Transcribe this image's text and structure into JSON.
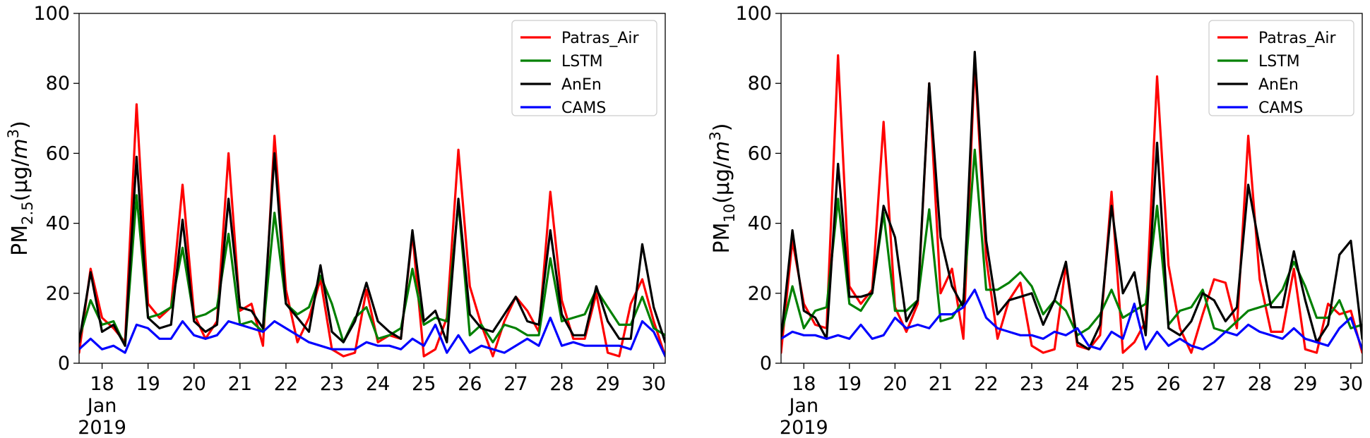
{
  "chart_data": [
    {
      "type": "line",
      "ylabel": {
        "main": "PM",
        "sub": "2.5",
        "unit": "(μg/m",
        "sup": "3",
        "close": ")"
      },
      "ylim": [
        0,
        100
      ],
      "yticks": [
        0,
        20,
        40,
        60,
        80,
        100
      ],
      "xlim": [
        17.5,
        30.25
      ],
      "xticks": [
        {
          "value": 18,
          "lines": [
            "18",
            "Jan",
            "2019"
          ]
        },
        {
          "value": 19,
          "lines": [
            "19"
          ]
        },
        {
          "value": 20,
          "lines": [
            "20"
          ]
        },
        {
          "value": 21,
          "lines": [
            "21"
          ]
        },
        {
          "value": 22,
          "lines": [
            "22"
          ]
        },
        {
          "value": 23,
          "lines": [
            "23"
          ]
        },
        {
          "value": 24,
          "lines": [
            "24"
          ]
        },
        {
          "value": 25,
          "lines": [
            "25"
          ]
        },
        {
          "value": 26,
          "lines": [
            "26"
          ]
        },
        {
          "value": 27,
          "lines": [
            "27"
          ]
        },
        {
          "value": 28,
          "lines": [
            "28"
          ]
        },
        {
          "value": 29,
          "lines": [
            "29"
          ]
        },
        {
          "value": 30,
          "lines": [
            "30"
          ]
        }
      ],
      "x": [
        17.5,
        17.75,
        18,
        18.25,
        18.5,
        18.75,
        19,
        19.25,
        19.5,
        19.75,
        20,
        20.25,
        20.5,
        20.75,
        21,
        21.25,
        21.5,
        21.75,
        22,
        22.25,
        22.5,
        22.75,
        23,
        23.25,
        23.5,
        23.75,
        24,
        24.25,
        24.5,
        24.75,
        25,
        25.25,
        25.5,
        25.75,
        26,
        26.25,
        26.5,
        26.75,
        27,
        27.25,
        27.5,
        27.75,
        28,
        28.25,
        28.5,
        28.75,
        29,
        29.25,
        29.5,
        29.75,
        30,
        30.25
      ],
      "legend_position": "top-right",
      "grid": false,
      "series": [
        {
          "name": "Patras_Air",
          "color": "#ff0000",
          "values": [
            3,
            27,
            13,
            10,
            6,
            74,
            17,
            13,
            16,
            51,
            14,
            7,
            12,
            60,
            15,
            17,
            5,
            65,
            21,
            6,
            13,
            24,
            4,
            2,
            3,
            21,
            6,
            8,
            7,
            37,
            2,
            4,
            13,
            61,
            22,
            11,
            2,
            12,
            19,
            15,
            9,
            49,
            18,
            7,
            7,
            20,
            3,
            2,
            17,
            24,
            12,
            2
          ]
        },
        {
          "name": "LSTM",
          "color": "#008000",
          "values": [
            7,
            18,
            11,
            12,
            5,
            48,
            13,
            14,
            16,
            33,
            13,
            14,
            16,
            37,
            11,
            12,
            9,
            43,
            17,
            14,
            16,
            25,
            17,
            6,
            13,
            16,
            7,
            8,
            10,
            27,
            11,
            13,
            12,
            46,
            8,
            11,
            6,
            11,
            10,
            8,
            8,
            30,
            12,
            13,
            14,
            21,
            16,
            11,
            11,
            19,
            10,
            8
          ]
        },
        {
          "name": "AnEn",
          "color": "#000000",
          "values": [
            6,
            26,
            9,
            11,
            5,
            59,
            13,
            10,
            11,
            41,
            12,
            9,
            11,
            47,
            16,
            15,
            10,
            60,
            17,
            13,
            9,
            28,
            9,
            6,
            12,
            23,
            12,
            9,
            7,
            38,
            12,
            15,
            6,
            47,
            14,
            10,
            9,
            14,
            19,
            12,
            11,
            38,
            14,
            8,
            8,
            22,
            12,
            7,
            7,
            34,
            16,
            6
          ]
        },
        {
          "name": "CAMS",
          "color": "#0000ff",
          "values": [
            4,
            7,
            4,
            5,
            3,
            11,
            10,
            7,
            7,
            12,
            8,
            7,
            8,
            12,
            11,
            10,
            9,
            12,
            10,
            8,
            6,
            5,
            4,
            4,
            4,
            6,
            5,
            5,
            4,
            7,
            5,
            11,
            3,
            8,
            3,
            5,
            4,
            3,
            5,
            7,
            5,
            13,
            5,
            6,
            5,
            5,
            5,
            5,
            4,
            12,
            9,
            2
          ]
        }
      ]
    },
    {
      "type": "line",
      "ylabel": {
        "main": "PM",
        "sub": "10",
        "unit": "(μg/m",
        "sup": "3",
        "close": ")"
      },
      "ylim": [
        0,
        100
      ],
      "yticks": [
        0,
        20,
        40,
        60,
        80,
        100
      ],
      "xlim": [
        17.5,
        30.25
      ],
      "xticks": [
        {
          "value": 18,
          "lines": [
            "18",
            "Jan",
            "2019"
          ]
        },
        {
          "value": 19,
          "lines": [
            "19"
          ]
        },
        {
          "value": 20,
          "lines": [
            "20"
          ]
        },
        {
          "value": 21,
          "lines": [
            "21"
          ]
        },
        {
          "value": 22,
          "lines": [
            "22"
          ]
        },
        {
          "value": 23,
          "lines": [
            "23"
          ]
        },
        {
          "value": 24,
          "lines": [
            "24"
          ]
        },
        {
          "value": 25,
          "lines": [
            "25"
          ]
        },
        {
          "value": 26,
          "lines": [
            "26"
          ]
        },
        {
          "value": 27,
          "lines": [
            "27"
          ]
        },
        {
          "value": 28,
          "lines": [
            "28"
          ]
        },
        {
          "value": 29,
          "lines": [
            "29"
          ]
        },
        {
          "value": 30,
          "lines": [
            "30"
          ]
        }
      ],
      "x": [
        17.5,
        17.75,
        18,
        18.25,
        18.5,
        18.75,
        19,
        19.25,
        19.5,
        19.75,
        20,
        20.25,
        20.5,
        20.75,
        21,
        21.25,
        21.5,
        21.75,
        22,
        22.25,
        22.5,
        22.75,
        23,
        23.25,
        23.5,
        23.75,
        24,
        24.25,
        24.5,
        24.75,
        25,
        25.25,
        25.5,
        25.75,
        26,
        26.25,
        26.5,
        26.75,
        27,
        27.25,
        27.5,
        27.75,
        28,
        28.25,
        28.5,
        28.75,
        29,
        29.25,
        29.5,
        29.75,
        30,
        30.25
      ],
      "legend_position": "top-right",
      "grid": false,
      "series": [
        {
          "name": "Patras_Air",
          "color": "#ff0000",
          "values": [
            3,
            35,
            17,
            11,
            10,
            88,
            22,
            17,
            21,
            69,
            16,
            9,
            17,
            80,
            20,
            27,
            7,
            86,
            30,
            7,
            18,
            23,
            5,
            3,
            4,
            28,
            5,
            4,
            8,
            49,
            3,
            6,
            12,
            82,
            28,
            10,
            3,
            14,
            24,
            23,
            10,
            65,
            24,
            9,
            9,
            27,
            4,
            3,
            17,
            14,
            15,
            3
          ]
        },
        {
          "name": "LSTM",
          "color": "#008000",
          "values": [
            8,
            22,
            10,
            15,
            16,
            47,
            17,
            15,
            20,
            43,
            15,
            15,
            18,
            44,
            12,
            13,
            18,
            61,
            21,
            21,
            23,
            26,
            22,
            14,
            18,
            15,
            8,
            10,
            14,
            21,
            13,
            15,
            17,
            45,
            11,
            15,
            16,
            21,
            10,
            9,
            12,
            15,
            16,
            17,
            21,
            29,
            22,
            13,
            13,
            18,
            10,
            11
          ]
        },
        {
          "name": "AnEn",
          "color": "#000000",
          "values": [
            7,
            38,
            15,
            13,
            7,
            57,
            19,
            19,
            20,
            45,
            36,
            12,
            18,
            80,
            36,
            22,
            16,
            89,
            35,
            14,
            18,
            19,
            20,
            11,
            18,
            29,
            6,
            4,
            11,
            45,
            20,
            26,
            8,
            63,
            10,
            8,
            12,
            20,
            18,
            12,
            16,
            51,
            33,
            16,
            16,
            32,
            18,
            6,
            11,
            31,
            35,
            7
          ]
        },
        {
          "name": "CAMS",
          "color": "#0000ff",
          "values": [
            7,
            9,
            8,
            8,
            7,
            8,
            7,
            11,
            7,
            8,
            13,
            10,
            11,
            10,
            14,
            14,
            16,
            21,
            13,
            10,
            9,
            8,
            8,
            7,
            9,
            8,
            10,
            5,
            4,
            9,
            7,
            17,
            4,
            9,
            5,
            7,
            5,
            4,
            6,
            9,
            8,
            11,
            9,
            8,
            7,
            10,
            7,
            6,
            5,
            10,
            13,
            4
          ]
        }
      ]
    }
  ]
}
